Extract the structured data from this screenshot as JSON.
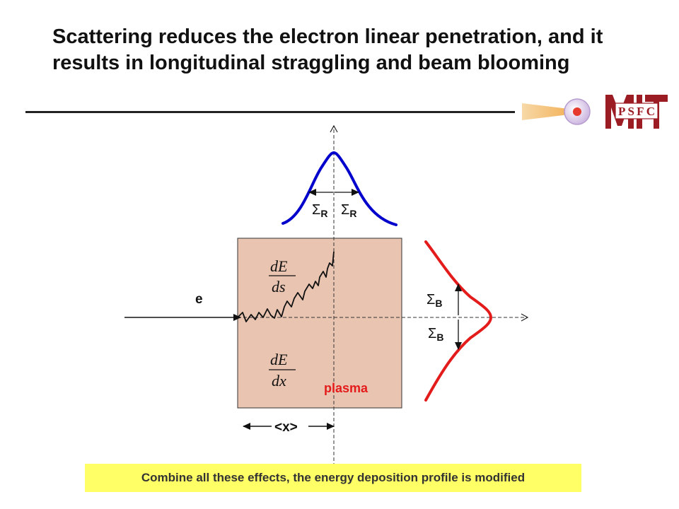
{
  "slide": {
    "title": "Scattering reduces the electron linear penetration, and it results in longitudinal straggling and beam blooming",
    "banner": "Combine all these effects, the energy deposition profile is modified"
  },
  "diagram": {
    "electron_label": "e",
    "plasma_label": "plasma",
    "range_label": "<x>",
    "sigma_symbol": "Σ",
    "sigma_r_sub": "R",
    "sigma_b_sub": "B",
    "eq1": {
      "num": "dE",
      "den": "ds"
    },
    "eq2": {
      "num": "dE",
      "den": "dx"
    }
  },
  "logo": {
    "text": "PSFC",
    "mit_text": "MIT"
  },
  "colors": {
    "plasma_fill": "#e9c4b1",
    "curve_blue": "#0000cc",
    "curve_red": "#e41b1b",
    "plasma_label": "#e41b1b",
    "banner_bg": "#ffff66"
  }
}
